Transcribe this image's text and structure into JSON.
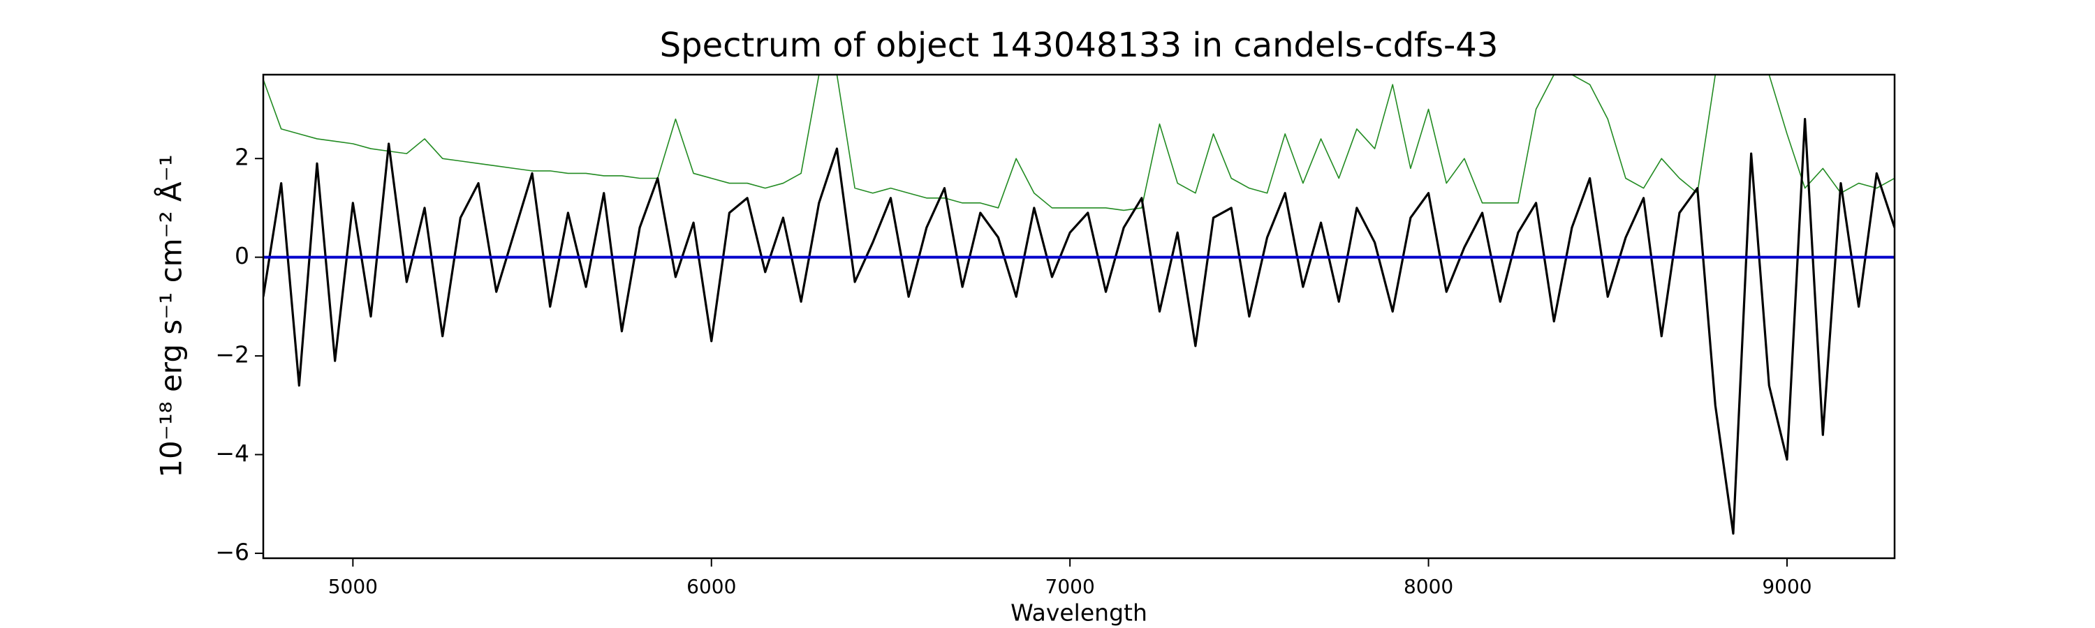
{
  "chart_data": {
    "type": "line",
    "title": "Spectrum of object 143048133 in candels-cdfs-43",
    "x_label": "Wavelength",
    "y_label": "10⁻¹⁸ erg s⁻¹ cm⁻² Å⁻¹",
    "xlim": [
      4750,
      9300
    ],
    "ylim": [
      -6.1,
      3.7
    ],
    "xticks": [
      5000,
      6000,
      7000,
      8000,
      9000
    ],
    "yticks": [
      {
        "value": -6,
        "label": "−6"
      },
      {
        "value": -4,
        "label": "−4"
      },
      {
        "value": -2,
        "label": "−2"
      },
      0,
      2
    ],
    "x": [
      4750,
      4800,
      4850,
      4900,
      4950,
      5000,
      5050,
      5100,
      5150,
      5200,
      5250,
      5300,
      5350,
      5400,
      5450,
      5500,
      5550,
      5600,
      5650,
      5700,
      5750,
      5800,
      5850,
      5900,
      5950,
      6000,
      6050,
      6100,
      6150,
      6200,
      6250,
      6300,
      6350,
      6400,
      6450,
      6500,
      6550,
      6600,
      6650,
      6700,
      6750,
      6800,
      6850,
      6900,
      6950,
      7000,
      7050,
      7100,
      7150,
      7200,
      7250,
      7300,
      7350,
      7400,
      7450,
      7500,
      7550,
      7600,
      7650,
      7700,
      7750,
      7800,
      7850,
      7900,
      7950,
      8000,
      8050,
      8100,
      8150,
      8200,
      8250,
      8300,
      8350,
      8400,
      8450,
      8500,
      8550,
      8600,
      8650,
      8700,
      8750,
      8800,
      8850,
      8900,
      8950,
      9000,
      9050,
      9100,
      9150,
      9200,
      9250,
      9300
    ],
    "series": [
      {
        "color": "#228b22",
        "width": 1.6,
        "values": [
          3.6,
          2.6,
          2.5,
          2.4,
          2.35,
          2.3,
          2.2,
          2.15,
          2.1,
          2.4,
          2.0,
          1.95,
          1.9,
          1.85,
          1.8,
          1.75,
          1.75,
          1.7,
          1.7,
          1.65,
          1.65,
          1.6,
          1.6,
          2.8,
          1.7,
          1.6,
          1.5,
          1.5,
          1.4,
          1.5,
          1.7,
          3.7,
          3.7,
          1.4,
          1.3,
          1.4,
          1.3,
          1.2,
          1.2,
          1.1,
          1.1,
          1.0,
          2.0,
          1.3,
          1.0,
          1.0,
          1.0,
          1.0,
          0.95,
          1.0,
          2.7,
          1.5,
          1.3,
          2.5,
          1.6,
          1.4,
          1.3,
          2.5,
          1.5,
          2.4,
          1.6,
          2.6,
          2.2,
          3.5,
          1.8,
          3.0,
          1.5,
          2.0,
          1.1,
          1.1,
          1.1,
          3.0,
          3.7,
          3.7,
          3.5,
          2.8,
          1.6,
          1.4,
          2.0,
          1.6,
          1.3,
          3.7,
          3.7,
          3.7,
          3.7,
          2.5,
          1.4,
          1.8,
          1.3,
          1.5,
          1.4,
          1.6
        ]
      },
      {
        "color": "#000000",
        "width": 3.2,
        "values": [
          -0.8,
          1.5,
          -2.6,
          1.9,
          -2.1,
          1.1,
          -1.2,
          2.3,
          -0.5,
          1.0,
          -1.6,
          0.8,
          1.5,
          -0.7,
          0.5,
          1.7,
          -1.0,
          0.9,
          -0.6,
          1.3,
          -1.5,
          0.6,
          1.6,
          -0.4,
          0.7,
          -1.7,
          0.9,
          1.2,
          -0.3,
          0.8,
          -0.9,
          1.1,
          2.2,
          -0.5,
          0.3,
          1.2,
          -0.8,
          0.6,
          1.4,
          -0.6,
          0.9,
          0.4,
          -0.8,
          1.0,
          -0.4,
          0.5,
          0.9,
          -0.7,
          0.6,
          1.2,
          -1.1,
          0.5,
          -1.8,
          0.8,
          1.0,
          -1.2,
          0.4,
          1.3,
          -0.6,
          0.7,
          -0.9,
          1.0,
          0.3,
          -1.1,
          0.8,
          1.3,
          -0.7,
          0.2,
          0.9,
          -0.9,
          0.5,
          1.1,
          -1.3,
          0.6,
          1.6,
          -0.8,
          0.4,
          1.2,
          -1.6,
          0.9,
          1.4,
          -3.0,
          -5.6,
          2.1,
          -2.6,
          -4.1,
          2.8,
          -3.6,
          1.5,
          -1.0,
          1.7,
          0.6
        ]
      },
      {
        "color": "#0000cc",
        "width": 4,
        "values": [
          0,
          0,
          0,
          0,
          0,
          0,
          0,
          0,
          0,
          0,
          0,
          0,
          0,
          0,
          0,
          0,
          0,
          0,
          0,
          0,
          0,
          0,
          0,
          0,
          0,
          0,
          0,
          0,
          0,
          0,
          0,
          0,
          0,
          0,
          0,
          0,
          0,
          0,
          0,
          0,
          0,
          0,
          0,
          0,
          0,
          0,
          0,
          0,
          0,
          0,
          0,
          0,
          0,
          0,
          0,
          0,
          0,
          0,
          0,
          0,
          0,
          0,
          0,
          0,
          0,
          0,
          0,
          0,
          0,
          0,
          0,
          0,
          0,
          0,
          0,
          0,
          0,
          0,
          0,
          0,
          0,
          0,
          0,
          0,
          0,
          0,
          0,
          0,
          0,
          0,
          0,
          0
        ]
      }
    ]
  }
}
